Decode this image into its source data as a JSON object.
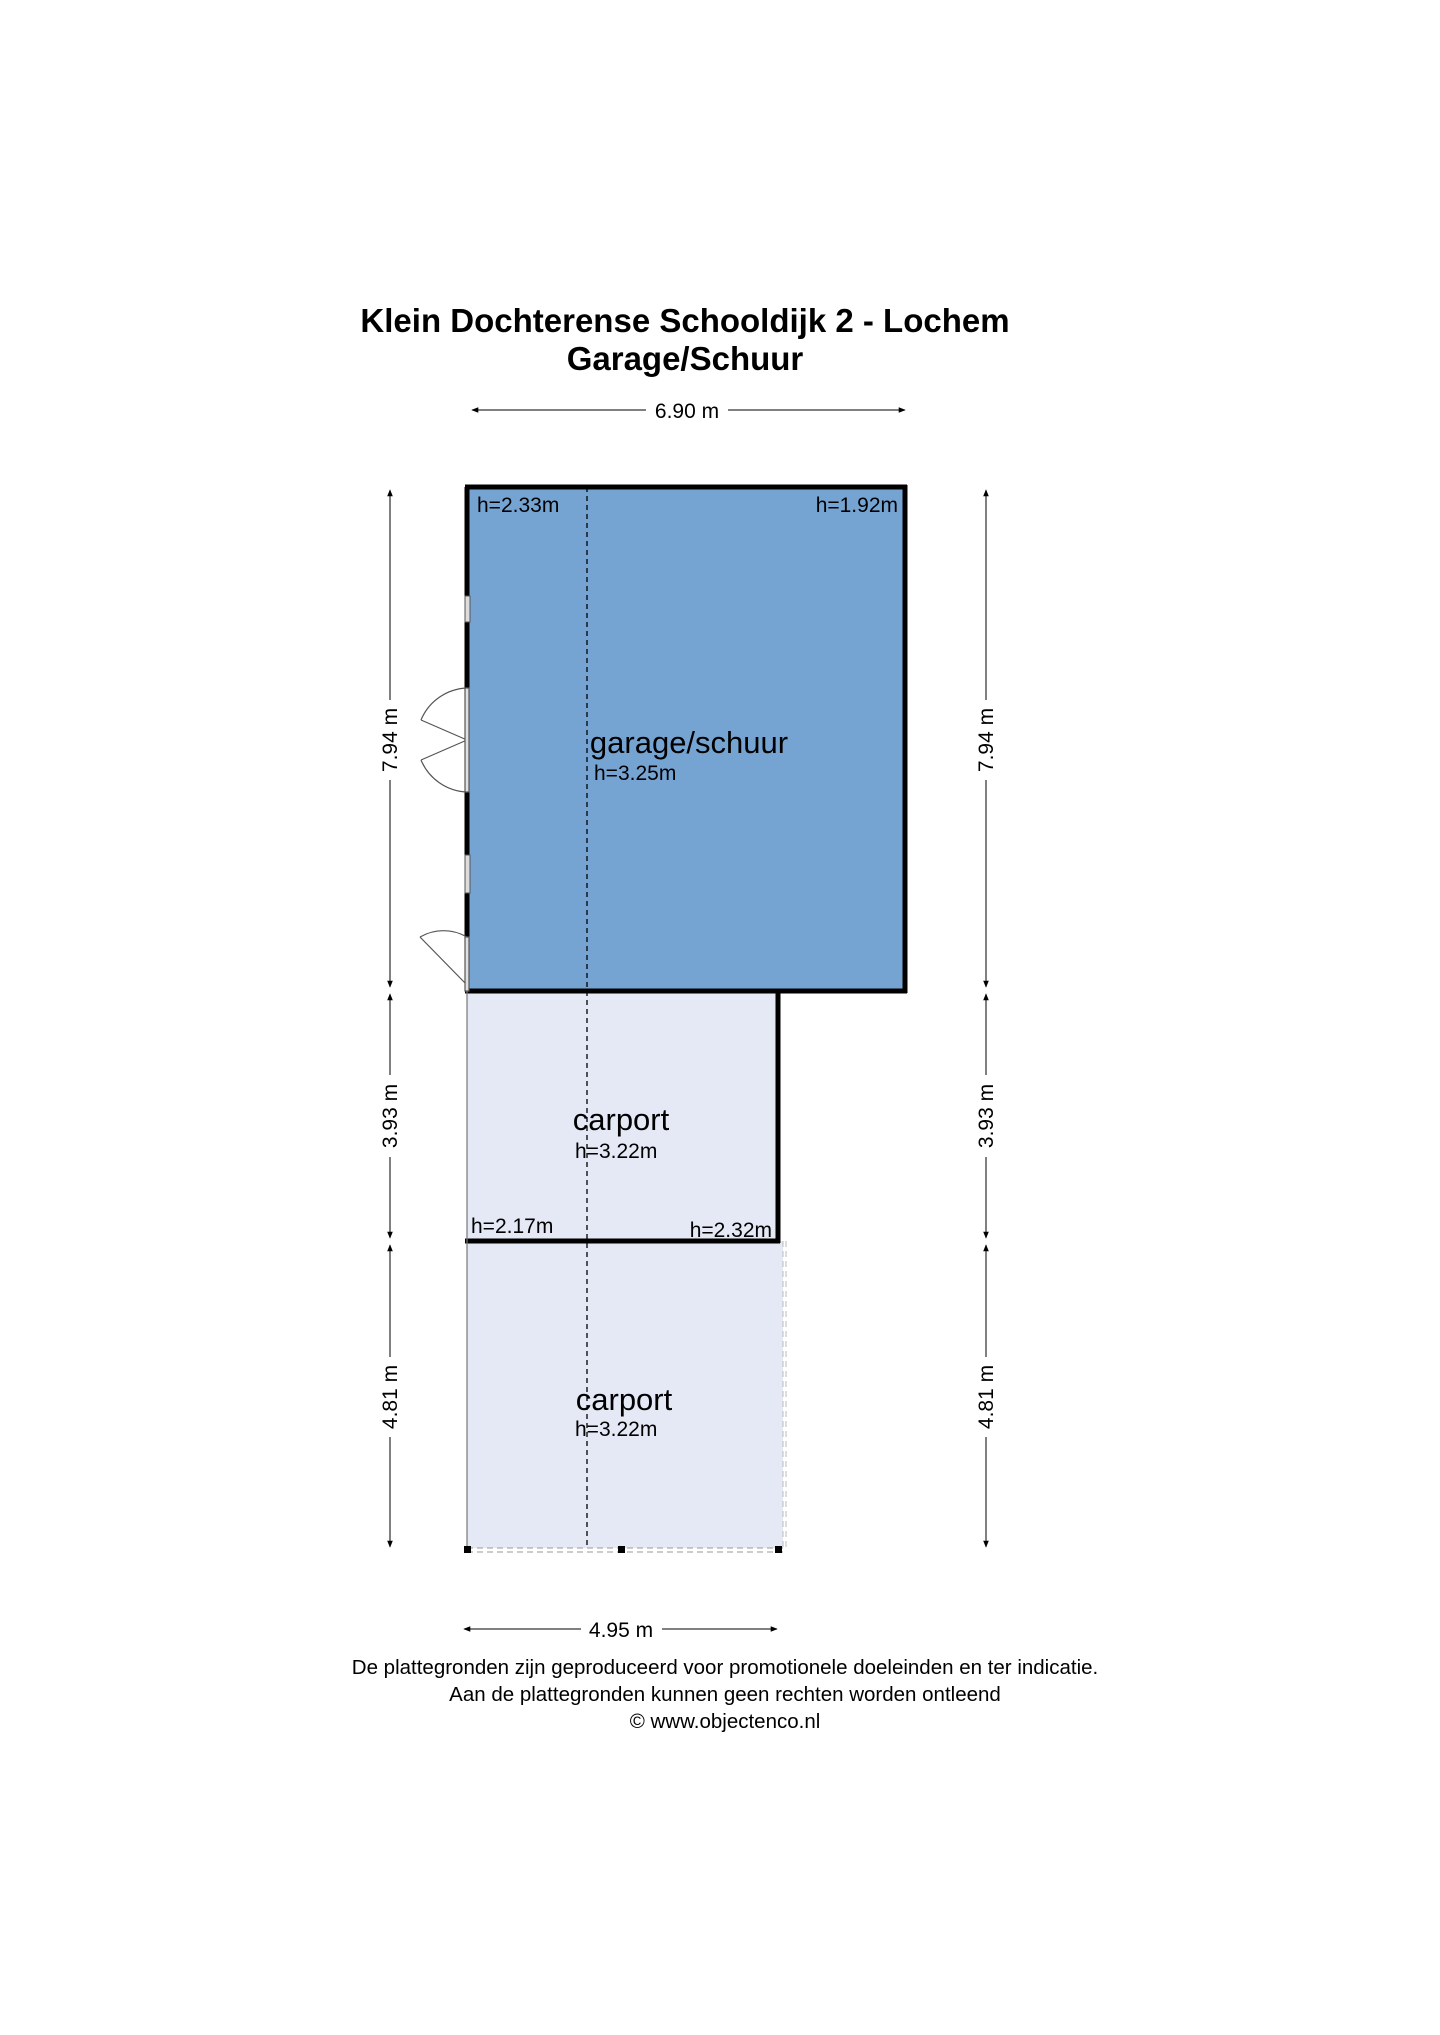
{
  "title": {
    "line1": "Klein Dochterense Schooldijk 2 - Lochem",
    "line2": "Garage/Schuur"
  },
  "dimensions": {
    "top_width": "6.90 m",
    "bottom_width": "4.95 m",
    "left_garage": "7.94 m",
    "left_carport1": "3.93 m",
    "left_carport2": "4.81 m",
    "right_garage": "7.94 m",
    "right_carport1": "3.93 m",
    "right_carport2": "4.81 m"
  },
  "rooms": {
    "garage": {
      "name": "garage/schuur",
      "height": "h=3.25m",
      "corner_left": "h=2.33m",
      "corner_right": "h=1.92m",
      "color": "#75a4d3"
    },
    "carport1": {
      "name": "carport",
      "height": "h=3.22m",
      "corner_left": "h=2.17m",
      "corner_right": "h=2.32m",
      "color": "#e5e9f5"
    },
    "carport2": {
      "name": "carport",
      "height": "h=3.22m",
      "color": "#e5e9f5"
    }
  },
  "footer": {
    "line1": "De plattegronden zijn geproduceerd voor promotionele doeleinden en ter indicatie.",
    "line2": "Aan de plattegronden kunnen geen rechten worden ontleend",
    "line3": "© www.objectenco.nl"
  }
}
